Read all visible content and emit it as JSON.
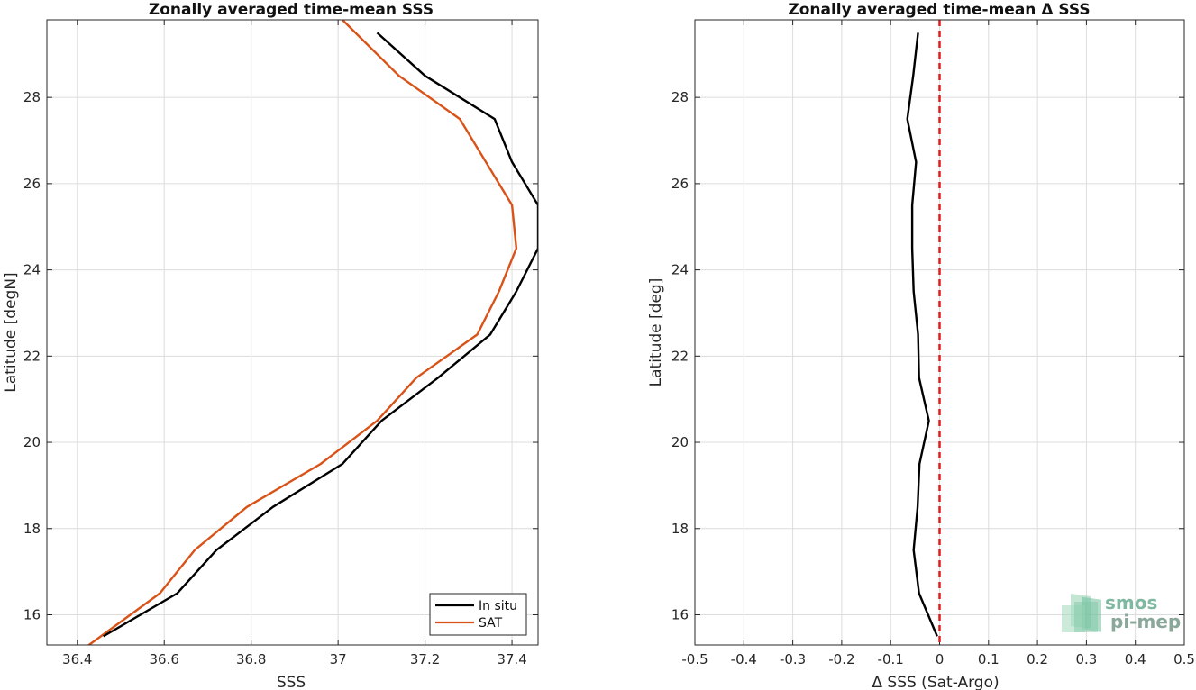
{
  "chart_data": [
    {
      "type": "line",
      "title": "Zonally averaged time-mean SSS",
      "xlabel": "SSS",
      "ylabel": "Latitude [degN]",
      "xlim": [
        36.33,
        37.46
      ],
      "ylim": [
        15.3,
        29.8
      ],
      "xticks": [
        "36.4",
        "36.6",
        "36.8",
        "37",
        "37.2",
        "37.4"
      ],
      "xtick_values": [
        36.4,
        36.6,
        36.8,
        37.0,
        37.2,
        37.4
      ],
      "yticks": [
        "16",
        "18",
        "20",
        "22",
        "24",
        "26",
        "28"
      ],
      "ytick_values": [
        16,
        18,
        20,
        22,
        24,
        26,
        28
      ],
      "grid": true,
      "legend_position": "bottom-right",
      "series": [
        {
          "name": "In situ",
          "color": "#000000",
          "points": [
            [
              36.46,
              15.5
            ],
            [
              36.63,
              16.5
            ],
            [
              36.72,
              17.5
            ],
            [
              36.85,
              18.5
            ],
            [
              37.01,
              19.5
            ],
            [
              37.1,
              20.5
            ],
            [
              37.23,
              21.5
            ],
            [
              37.35,
              22.5
            ],
            [
              37.41,
              23.5
            ],
            [
              37.46,
              24.5
            ],
            [
              37.46,
              25.5
            ],
            [
              37.4,
              26.5
            ],
            [
              37.36,
              27.5
            ],
            [
              37.2,
              28.5
            ],
            [
              37.09,
              29.5
            ]
          ]
        },
        {
          "name": "SAT",
          "color": "#d95319",
          "points": [
            [
              36.42,
              15.25
            ],
            [
              36.59,
              16.5
            ],
            [
              36.67,
              17.5
            ],
            [
              36.79,
              18.5
            ],
            [
              36.96,
              19.5
            ],
            [
              37.09,
              20.5
            ],
            [
              37.18,
              21.5
            ],
            [
              37.32,
              22.5
            ],
            [
              37.37,
              23.5
            ],
            [
              37.41,
              24.5
            ],
            [
              37.4,
              25.5
            ],
            [
              37.34,
              26.5
            ],
            [
              37.28,
              27.5
            ],
            [
              37.14,
              28.5
            ],
            [
              37.04,
              29.5
            ],
            [
              37.01,
              29.8
            ]
          ]
        }
      ]
    },
    {
      "type": "line",
      "title": "Zonally averaged time-mean Δ SSS",
      "xlabel": "Δ SSS (Sat-Argo)",
      "ylabel": "Latitude [deg]",
      "xlim": [
        -0.5,
        0.5
      ],
      "ylim": [
        15.3,
        29.8
      ],
      "xticks": [
        "-0.5",
        "-0.4",
        "-0.3",
        "-0.2",
        "-0.1",
        "0",
        "0.1",
        "0.2",
        "0.3",
        "0.4",
        "0.5"
      ],
      "xtick_values": [
        -0.5,
        -0.4,
        -0.3,
        -0.2,
        -0.1,
        0,
        0.1,
        0.2,
        0.3,
        0.4,
        0.5
      ],
      "yticks": [
        "16",
        "18",
        "20",
        "22",
        "24",
        "26",
        "28"
      ],
      "ytick_values": [
        16,
        18,
        20,
        22,
        24,
        26,
        28
      ],
      "grid": true,
      "reference_line": {
        "x": 0,
        "color": "#e41a1c",
        "style": "dashed"
      },
      "series": [
        {
          "color": "#000000",
          "points": [
            [
              -0.005,
              15.5
            ],
            [
              -0.042,
              16.5
            ],
            [
              -0.053,
              17.5
            ],
            [
              -0.045,
              18.5
            ],
            [
              -0.041,
              19.5
            ],
            [
              -0.022,
              20.5
            ],
            [
              -0.042,
              21.5
            ],
            [
              -0.044,
              22.5
            ],
            [
              -0.053,
              23.5
            ],
            [
              -0.056,
              24.5
            ],
            [
              -0.056,
              25.5
            ],
            [
              -0.048,
              26.5
            ],
            [
              -0.066,
              27.5
            ],
            [
              -0.054,
              28.5
            ],
            [
              -0.044,
              29.5
            ]
          ]
        }
      ]
    }
  ],
  "logo": {
    "line1": "smos",
    "line2": "pi-mep"
  }
}
